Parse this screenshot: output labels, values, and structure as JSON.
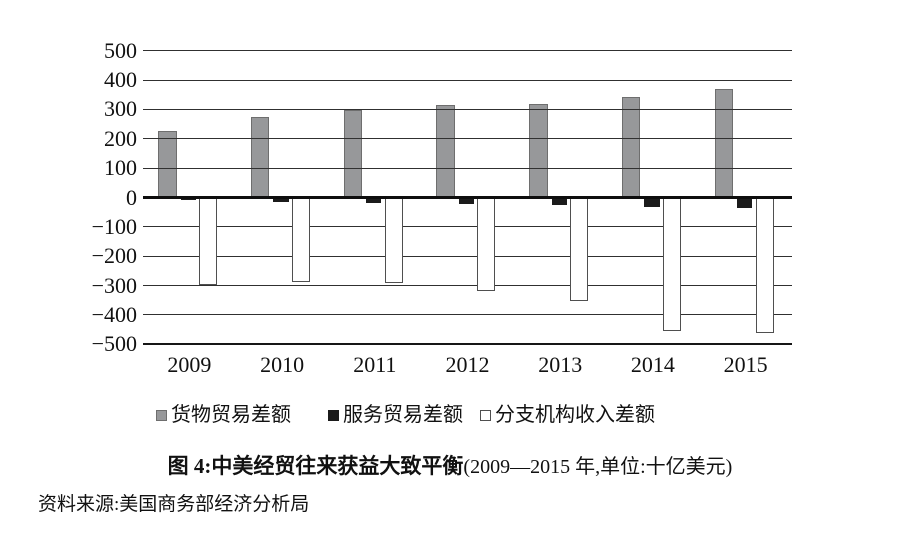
{
  "figure": {
    "caption_bold": "图 4:中美经贸往来获益大致平衡",
    "caption_note": "(2009—2015 年,单位:十亿美元)",
    "source": "资料来源:美国商务部经济分析局"
  },
  "chart_data": {
    "type": "bar",
    "title": "图 4:中美经贸往来获益大致平衡(2009—2015 年,单位:十亿美元)",
    "unit": "十亿美元",
    "categories": [
      "2009",
      "2010",
      "2011",
      "2012",
      "2013",
      "2014",
      "2015"
    ],
    "series": [
      {
        "name": "货物贸易差额",
        "color": "#97989a",
        "border_color": "#6e6e6e",
        "values": [
          227,
          273,
          297,
          315,
          319,
          344,
          368
        ]
      },
      {
        "name": "服务贸易差额",
        "color": "#1b1b1b",
        "border_color": "#1b1b1b",
        "values": [
          -10,
          -15,
          -19,
          -22,
          -26,
          -31,
          -37
        ]
      },
      {
        "name": "分支机构收入差额",
        "color": "#ffffff",
        "border_color": "#4f4f4f",
        "values": [
          -297,
          -287,
          -292,
          -320,
          -351,
          -454,
          -461
        ]
      }
    ],
    "ylim": [
      -500,
      500
    ],
    "yticks": [
      500,
      400,
      300,
      200,
      100,
      0,
      -100,
      -200,
      -300,
      -400,
      -500
    ],
    "ytick_labels": [
      "500",
      "400",
      "300",
      "200",
      "100",
      "0",
      "−100",
      "−200",
      "−300",
      "−400",
      "−500"
    ],
    "grid": true,
    "legend_position": "bottom",
    "xlabel": "",
    "ylabel": ""
  }
}
